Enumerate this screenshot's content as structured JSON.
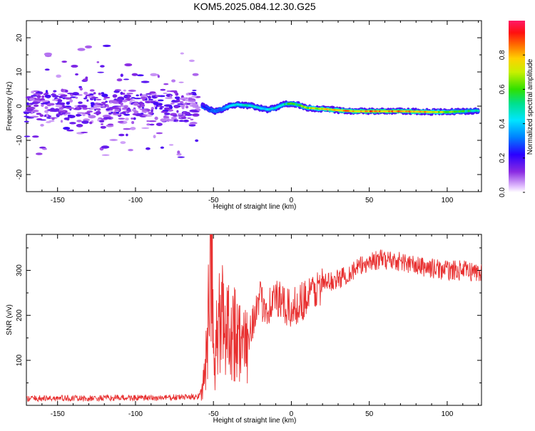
{
  "title": "KOM5.2025.084.12.30.G25",
  "chart_data": [
    {
      "type": "heatmap",
      "xlabel": "Height of straight line (km)",
      "ylabel": "Frequency (Hz)",
      "xlim": [
        -170,
        122
      ],
      "ylim": [
        -25,
        25
      ],
      "xticks": [
        -150,
        -100,
        -50,
        0,
        50,
        100
      ],
      "yticks": [
        -20,
        -10,
        0,
        10,
        20
      ],
      "grid": false,
      "colorbar": {
        "label": "Normalized spectral amplitude",
        "range": [
          0,
          1
        ],
        "ticks": [
          "0.0",
          "0.2",
          "0.4",
          "0.6",
          "0.8"
        ]
      },
      "ridge": {
        "description": "dominant frequency trace (Hz) vs height (km)",
        "x": [
          -57,
          -50,
          -45,
          -40,
          -35,
          -30,
          -25,
          -20,
          -15,
          -10,
          -5,
          0,
          5,
          10,
          20,
          30,
          40,
          50,
          60,
          70,
          80,
          90,
          100,
          110,
          120
        ],
        "y": [
          0.0,
          -1.5,
          -1.0,
          0.0,
          0.5,
          0.3,
          0.0,
          -0.6,
          -1.0,
          -0.5,
          0.5,
          0.8,
          0.3,
          -0.5,
          -0.8,
          -1.2,
          -1.5,
          -1.5,
          -1.5,
          -1.5,
          -1.6,
          -1.7,
          -1.7,
          -1.5,
          -1.3
        ],
        "amplitude": [
          0.25,
          0.3,
          0.35,
          0.4,
          0.45,
          0.5,
          0.5,
          0.45,
          0.45,
          0.5,
          0.55,
          0.6,
          0.65,
          0.7,
          0.8,
          0.85,
          0.85,
          0.9,
          0.9,
          0.88,
          0.85,
          0.8,
          0.7,
          0.6,
          0.5
        ]
      },
      "scatter_region": {
        "description": "low-amplitude broadband scatter",
        "x_range": [
          -170,
          -60
        ],
        "y_range": [
          -20,
          20
        ],
        "amplitude_range": [
          0.05,
          0.2
        ]
      }
    },
    {
      "type": "line",
      "xlabel": "Height of straight line (km)",
      "ylabel": "SNR (v/v)",
      "xlim": [
        -170,
        122
      ],
      "ylim": [
        0,
        380
      ],
      "xticks": [
        -150,
        -100,
        -50,
        0,
        50,
        100
      ],
      "yticks": [
        100,
        200,
        300
      ],
      "grid": false,
      "series": [
        {
          "color": "#e83030",
          "x": [
            -170,
            -150,
            -130,
            -110,
            -90,
            -70,
            -60,
            -57,
            -55,
            -53,
            -52,
            -51,
            -50,
            -49,
            -48,
            -45,
            -40,
            -35,
            -30,
            -25,
            -20,
            -15,
            -10,
            -5,
            0,
            5,
            10,
            20,
            30,
            40,
            50,
            60,
            70,
            80,
            90,
            100,
            110,
            122
          ],
          "y": [
            15,
            16,
            15,
            17,
            16,
            18,
            20,
            35,
            90,
            200,
            300,
            370,
            120,
            60,
            150,
            200,
            180,
            160,
            120,
            190,
            230,
            220,
            240,
            220,
            210,
            230,
            240,
            270,
            280,
            300,
            320,
            325,
            320,
            310,
            305,
            300,
            300,
            295
          ]
        }
      ]
    }
  ]
}
